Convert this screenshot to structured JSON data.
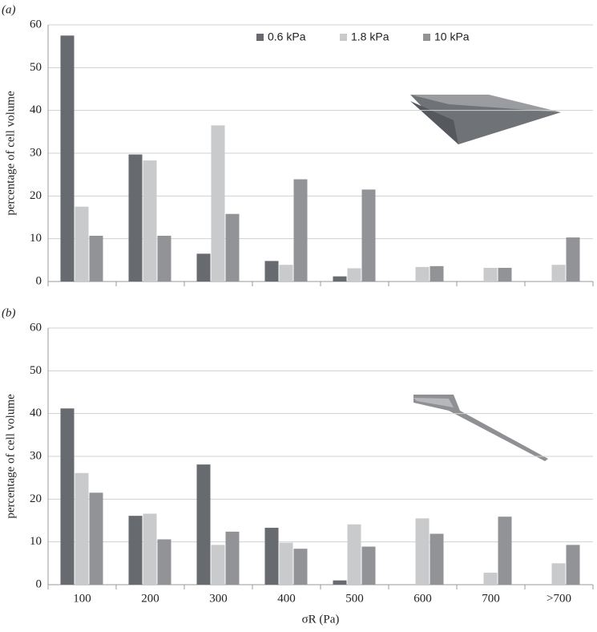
{
  "chart_data": [
    {
      "type": "bar",
      "panel_label": "(a)",
      "y_label": "percentage of cell volume",
      "categories": [
        null,
        null,
        null,
        null,
        null,
        null,
        null,
        null
      ],
      "series": [
        {
          "name": "0.6 kPa",
          "color": "#676a6f",
          "values": [
            57.5,
            29.7,
            6.5,
            4.8,
            1.2,
            0,
            0,
            0
          ]
        },
        {
          "name": "1.8 kPa",
          "color": "#c9cacc",
          "values": [
            17.5,
            28.3,
            36.5,
            3.9,
            3.1,
            3.4,
            3.2,
            3.9
          ]
        },
        {
          "name": "10 kPa",
          "color": "#919397",
          "values": [
            10.7,
            10.7,
            15.8,
            23.9,
            21.5,
            3.6,
            3.2,
            10.3
          ]
        }
      ],
      "ylim": [
        0,
        60
      ],
      "yticks": [
        0,
        10,
        20,
        30,
        40,
        50,
        60
      ],
      "grid": true,
      "legend": "top"
    },
    {
      "type": "bar",
      "panel_label": "(b)",
      "y_label": "percentage of cell volume",
      "x_label": "σR (Pa)",
      "categories": [
        "100",
        "200",
        "300",
        "400",
        "500",
        "600",
        "700",
        ">700"
      ],
      "series": [
        {
          "color": "#676a6f",
          "values": [
            41.2,
            16.1,
            28.1,
            13.3,
            1.0,
            0,
            0,
            0
          ]
        },
        {
          "color": "#c9cacc",
          "values": [
            26.1,
            16.6,
            9.3,
            9.8,
            14.1,
            15.5,
            2.8,
            5.0
          ]
        },
        {
          "color": "#919397",
          "values": [
            21.5,
            10.6,
            12.4,
            8.4,
            8.9,
            11.9,
            15.9,
            9.3
          ]
        }
      ],
      "ylim": [
        0,
        60
      ],
      "yticks": [
        0,
        10,
        20,
        30,
        40,
        50,
        60
      ],
      "grid": true
    }
  ]
}
